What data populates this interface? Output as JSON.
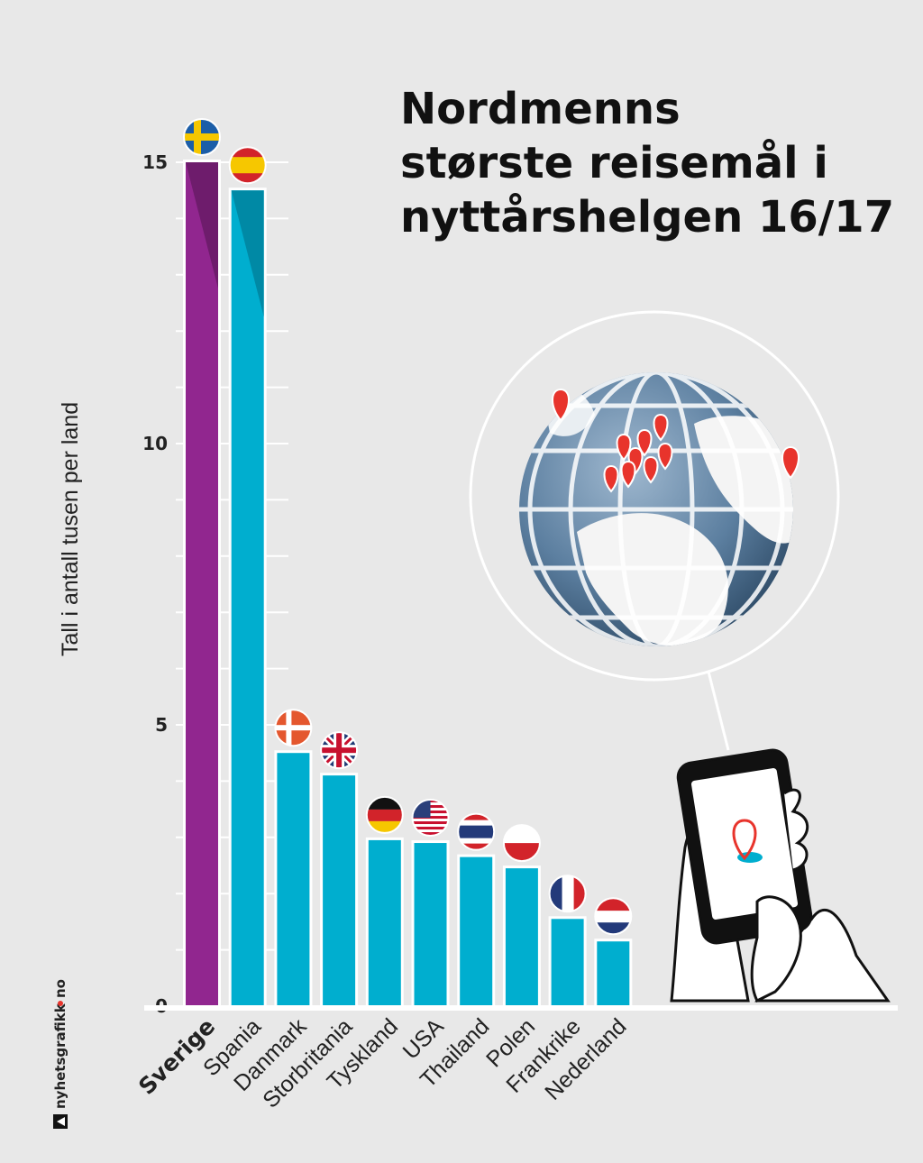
{
  "title_lines": [
    "Nordmenns",
    "største reisemål i",
    "nyttårshelgen 16/17"
  ],
  "brand": {
    "text": "nyhetsgrafikk",
    "suffix": "no"
  },
  "chart_data": {
    "type": "bar",
    "title": "Nordmenns største reisemål i nyttårshelgen 16/17",
    "ylabel": "Tall i antall tusen per land",
    "xlabel": "",
    "ylim": [
      0,
      15
    ],
    "yticks": [
      0,
      5,
      10,
      15
    ],
    "categories": [
      "Sverige",
      "Spania",
      "Danmark",
      "Storbritania",
      "Tyskland",
      "USA",
      "Thailand",
      "Polen",
      "Frankrike",
      "Nederland"
    ],
    "values": [
      15.0,
      14.5,
      4.5,
      4.1,
      2.95,
      2.9,
      2.65,
      2.45,
      1.55,
      1.15
    ],
    "highlight_category": "Sverige",
    "colors": {
      "highlight": "#91268f",
      "highlight_dark": "#6e1c6c",
      "bar": "#00aecf",
      "bar_dark": "#0089a5",
      "grid": "#ffffff"
    },
    "grid": true,
    "flag_icons": [
      "flag-sweden-icon",
      "flag-spain-icon",
      "flag-denmark-icon",
      "flag-uk-icon",
      "flag-germany-icon",
      "flag-usa-icon",
      "flag-thailand-icon",
      "flag-poland-icon",
      "flag-france-icon",
      "flag-netherlands-icon"
    ]
  },
  "illustrations": [
    "globe-icon",
    "location-pin-icon",
    "smartphone-in-hands-icon"
  ]
}
